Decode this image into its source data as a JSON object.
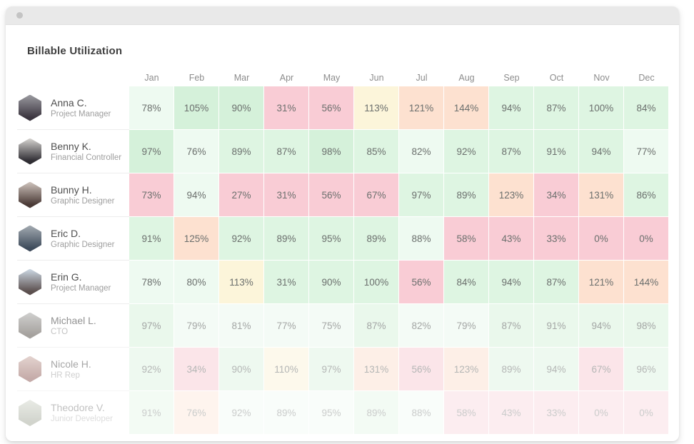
{
  "header": {
    "title": "Billable Utilization"
  },
  "months": [
    "Jan",
    "Feb",
    "Mar",
    "Apr",
    "May",
    "Jun",
    "Jul",
    "Aug",
    "Sep",
    "Oct",
    "Nov",
    "Dec"
  ],
  "palette": {
    "g1": "#eefaf1",
    "g2": "#def5e2",
    "g3": "#d5f1da",
    "pink": "#f9ccd5",
    "peach": "#fde1d0",
    "cream": "#fcf5da"
  },
  "titlebar_dot_color": "#c4c4c4",
  "rows": [
    {
      "name": "Anna C.",
      "role": "Project Manager",
      "opacity": 1,
      "avatar_colors": [
        "#9a9aa0",
        "#3c3640"
      ],
      "cells": [
        {
          "v": "78%",
          "c": "g1"
        },
        {
          "v": "105%",
          "c": "g3"
        },
        {
          "v": "90%",
          "c": "g3"
        },
        {
          "v": "31%",
          "c": "pink"
        },
        {
          "v": "56%",
          "c": "pink"
        },
        {
          "v": "113%",
          "c": "cream"
        },
        {
          "v": "121%",
          "c": "peach"
        },
        {
          "v": "144%",
          "c": "peach"
        },
        {
          "v": "94%",
          "c": "g2"
        },
        {
          "v": "87%",
          "c": "g2"
        },
        {
          "v": "100%",
          "c": "g2"
        },
        {
          "v": "84%",
          "c": "g2"
        }
      ]
    },
    {
      "name": "Benny K.",
      "role": "Financial Controller",
      "opacity": 1,
      "avatar_colors": [
        "#d6d4d1",
        "#2f2d33"
      ],
      "cells": [
        {
          "v": "97%",
          "c": "g3"
        },
        {
          "v": "76%",
          "c": "g1"
        },
        {
          "v": "89%",
          "c": "g2"
        },
        {
          "v": "87%",
          "c": "g2"
        },
        {
          "v": "98%",
          "c": "g3"
        },
        {
          "v": "85%",
          "c": "g2"
        },
        {
          "v": "82%",
          "c": "g1"
        },
        {
          "v": "92%",
          "c": "g2"
        },
        {
          "v": "87%",
          "c": "g2"
        },
        {
          "v": "91%",
          "c": "g2"
        },
        {
          "v": "94%",
          "c": "g2"
        },
        {
          "v": "77%",
          "c": "g1"
        }
      ]
    },
    {
      "name": "Bunny H.",
      "role": "Graphic Designer",
      "opacity": 1,
      "avatar_colors": [
        "#cfc4bd",
        "#4a3a36"
      ],
      "cells": [
        {
          "v": "73%",
          "c": "pink"
        },
        {
          "v": "94%",
          "c": "g1"
        },
        {
          "v": "27%",
          "c": "pink"
        },
        {
          "v": "31%",
          "c": "pink"
        },
        {
          "v": "56%",
          "c": "pink"
        },
        {
          "v": "67%",
          "c": "pink"
        },
        {
          "v": "97%",
          "c": "g2"
        },
        {
          "v": "89%",
          "c": "g2"
        },
        {
          "v": "123%",
          "c": "peach"
        },
        {
          "v": "34%",
          "c": "pink"
        },
        {
          "v": "131%",
          "c": "peach"
        },
        {
          "v": "86%",
          "c": "g2"
        }
      ]
    },
    {
      "name": "Eric D.",
      "role": "Graphic Designer",
      "opacity": 1,
      "avatar_colors": [
        "#a3aab1",
        "#3f4c5c"
      ],
      "cells": [
        {
          "v": "91%",
          "c": "g2"
        },
        {
          "v": "125%",
          "c": "peach"
        },
        {
          "v": "92%",
          "c": "g2"
        },
        {
          "v": "89%",
          "c": "g2"
        },
        {
          "v": "95%",
          "c": "g2"
        },
        {
          "v": "89%",
          "c": "g2"
        },
        {
          "v": "88%",
          "c": "g1"
        },
        {
          "v": "58%",
          "c": "pink"
        },
        {
          "v": "43%",
          "c": "pink"
        },
        {
          "v": "33%",
          "c": "pink"
        },
        {
          "v": "0%",
          "c": "pink"
        },
        {
          "v": "0%",
          "c": "pink"
        }
      ]
    },
    {
      "name": "Erin G.",
      "role": "Project Manager",
      "opacity": 1,
      "avatar_colors": [
        "#ccd8e3",
        "#5b4f4e"
      ],
      "cells": [
        {
          "v": "78%",
          "c": "g1"
        },
        {
          "v": "80%",
          "c": "g1"
        },
        {
          "v": "113%",
          "c": "cream"
        },
        {
          "v": "31%",
          "c": "g2"
        },
        {
          "v": "90%",
          "c": "g2"
        },
        {
          "v": "100%",
          "c": "g2"
        },
        {
          "v": "56%",
          "c": "pink"
        },
        {
          "v": "84%",
          "c": "g2"
        },
        {
          "v": "94%",
          "c": "g2"
        },
        {
          "v": "87%",
          "c": "g2"
        },
        {
          "v": "121%",
          "c": "peach"
        },
        {
          "v": "144%",
          "c": "peach"
        }
      ]
    },
    {
      "name": "Michael L.",
      "role": "CTO",
      "opacity": 0.62,
      "avatar_colors": [
        "#b4b4b2",
        "#6e6862"
      ],
      "cells": [
        {
          "v": "97%",
          "c": "g2"
        },
        {
          "v": "79%",
          "c": "g1"
        },
        {
          "v": "81%",
          "c": "g1"
        },
        {
          "v": "77%",
          "c": "g1"
        },
        {
          "v": "75%",
          "c": "g1"
        },
        {
          "v": "87%",
          "c": "g2"
        },
        {
          "v": "82%",
          "c": "g1"
        },
        {
          "v": "79%",
          "c": "g1"
        },
        {
          "v": "87%",
          "c": "g2"
        },
        {
          "v": "91%",
          "c": "g2"
        },
        {
          "v": "94%",
          "c": "g2"
        },
        {
          "v": "98%",
          "c": "g2"
        }
      ]
    },
    {
      "name": "Nicole H.",
      "role": "HR Rep",
      "opacity": 0.5,
      "avatar_colors": [
        "#c9a8a0",
        "#8c5a55"
      ],
      "cells": [
        {
          "v": "92%",
          "c": "g2"
        },
        {
          "v": "34%",
          "c": "pink"
        },
        {
          "v": "90%",
          "c": "g2"
        },
        {
          "v": "110%",
          "c": "cream"
        },
        {
          "v": "97%",
          "c": "g2"
        },
        {
          "v": "131%",
          "c": "peach"
        },
        {
          "v": "56%",
          "c": "pink"
        },
        {
          "v": "123%",
          "c": "peach"
        },
        {
          "v": "89%",
          "c": "g2"
        },
        {
          "v": "94%",
          "c": "g2"
        },
        {
          "v": "67%",
          "c": "pink"
        },
        {
          "v": "96%",
          "c": "g2"
        }
      ]
    },
    {
      "name": "Theodore V.",
      "role": "Junior Developer",
      "opacity": 0.35,
      "avatar_colors": [
        "#c2c8b8",
        "#7d8570"
      ],
      "cells": [
        {
          "v": "91%",
          "c": "g2"
        },
        {
          "v": "76%",
          "c": "peach"
        },
        {
          "v": "92%",
          "c": "g1"
        },
        {
          "v": "89%",
          "c": "g1"
        },
        {
          "v": "95%",
          "c": "g1"
        },
        {
          "v": "89%",
          "c": "g2"
        },
        {
          "v": "88%",
          "c": "g1"
        },
        {
          "v": "58%",
          "c": "pink"
        },
        {
          "v": "43%",
          "c": "pink"
        },
        {
          "v": "33%",
          "c": "pink"
        },
        {
          "v": "0%",
          "c": "pink"
        },
        {
          "v": "0%",
          "c": "pink"
        }
      ]
    }
  ]
}
